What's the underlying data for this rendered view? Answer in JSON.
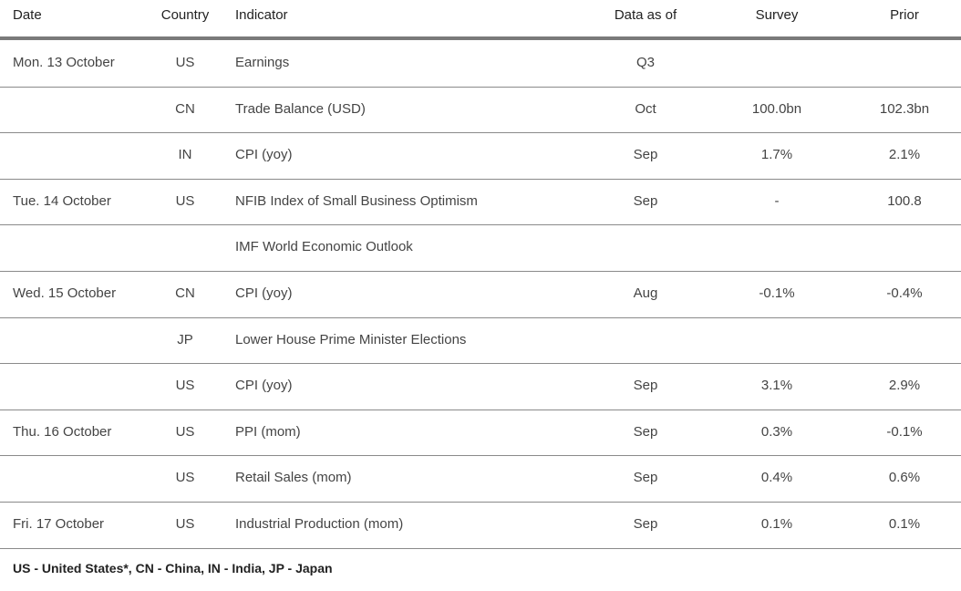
{
  "headers": {
    "date": "Date",
    "country": "Country",
    "indicator": "Indicator",
    "as_of": "Data as of",
    "survey": "Survey",
    "prior": "Prior"
  },
  "rows": [
    {
      "date": "Mon. 13 October",
      "country": "US",
      "indicator": "Earnings",
      "as_of": "Q3",
      "survey": "",
      "prior": ""
    },
    {
      "date": "",
      "country": "CN",
      "indicator": "Trade Balance (USD)",
      "as_of": "Oct",
      "survey": "100.0bn",
      "prior": "102.3bn"
    },
    {
      "date": "",
      "country": "IN",
      "indicator": "CPI (yoy)",
      "as_of": "Sep",
      "survey": "1.7%",
      "prior": "2.1%"
    },
    {
      "date": "Tue. 14 October",
      "country": "US",
      "indicator": "NFIB Index of Small Business Optimism",
      "as_of": "Sep",
      "survey": "-",
      "prior": "100.8"
    },
    {
      "date": "",
      "country": "",
      "indicator": "IMF World Economic Outlook",
      "as_of": "",
      "survey": "",
      "prior": ""
    },
    {
      "date": "Wed. 15 October",
      "country": "CN",
      "indicator": "CPI (yoy)",
      "as_of": "Aug",
      "survey": "-0.1%",
      "prior": "-0.4%"
    },
    {
      "date": "",
      "country": "JP",
      "indicator": "Lower House Prime Minister Elections",
      "as_of": "",
      "survey": "",
      "prior": ""
    },
    {
      "date": "",
      "country": "US",
      "indicator": "CPI (yoy)",
      "as_of": "Sep",
      "survey": "3.1%",
      "prior": "2.9%"
    },
    {
      "date": "Thu. 16 October",
      "country": "US",
      "indicator": "PPI (mom)",
      "as_of": "Sep",
      "survey": "0.3%",
      "prior": "-0.1%"
    },
    {
      "date": "",
      "country": "US",
      "indicator": "Retail Sales (mom)",
      "as_of": "Sep",
      "survey": "0.4%",
      "prior": "0.6%"
    },
    {
      "date": "Fri. 17 October",
      "country": "US",
      "indicator": "Industrial Production (mom)",
      "as_of": "Sep",
      "survey": "0.1%",
      "prior": "0.1%"
    }
  ],
  "footer": "US - United States*, CN - China, IN - India, JP - Japan"
}
